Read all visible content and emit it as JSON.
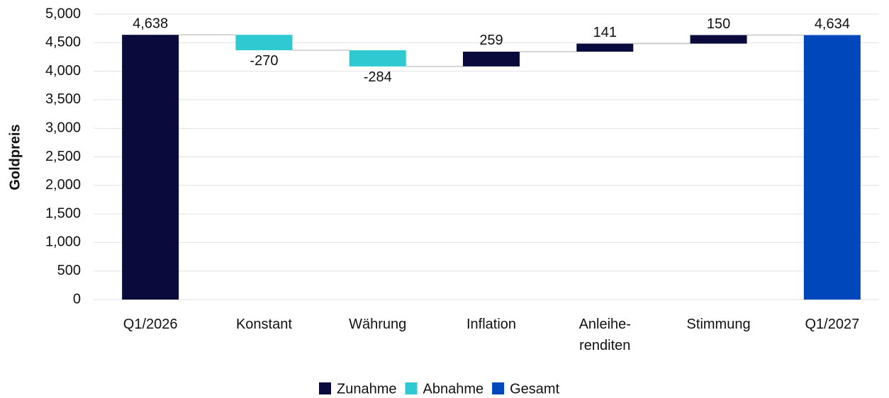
{
  "chart_data": {
    "type": "waterfall",
    "y_label": "Goldpreis",
    "categories": [
      "Q1/2026",
      "Konstant",
      "Währung",
      "Inflation",
      "Anleihe-\nrenditen",
      "Stimmung",
      "Q1/2027"
    ],
    "values": [
      4638,
      -270,
      -284,
      259,
      141,
      150,
      4634
    ],
    "value_labels": [
      "4,638",
      "-270",
      "-284",
      "259",
      "141",
      "150",
      "4,634"
    ],
    "is_total": [
      true,
      false,
      false,
      false,
      false,
      false,
      true
    ],
    "colors": [
      "#0a0a3c",
      "#2ec9d1",
      "#2ec9d1",
      "#0a0a3c",
      "#0a0a3c",
      "#0a0a3c",
      "#0047bb"
    ],
    "legend": [
      {
        "name": "Zunahme",
        "color": "#0a0a3c"
      },
      {
        "name": "Abnahme",
        "color": "#2ec9d1"
      },
      {
        "name": "Gesamt",
        "color": "#0047bb"
      }
    ],
    "ylim": [
      0,
      5000
    ],
    "yticks": [
      0,
      {
        "value": 500,
        "label": "500"
      },
      {
        "value": 1000,
        "label": "1,000"
      },
      {
        "value": 1500,
        "label": "1,500"
      },
      {
        "value": 2000,
        "label": "2,000"
      },
      {
        "value": 2500,
        "label": "2,500"
      },
      {
        "value": 3000,
        "label": "3,000"
      },
      {
        "value": 3500,
        "label": "3,500"
      },
      {
        "value": 4000,
        "label": "4,000"
      },
      {
        "value": 4500,
        "label": "4,500"
      },
      {
        "value": 5000,
        "label": "5,000"
      }
    ],
    "grid": true
  }
}
